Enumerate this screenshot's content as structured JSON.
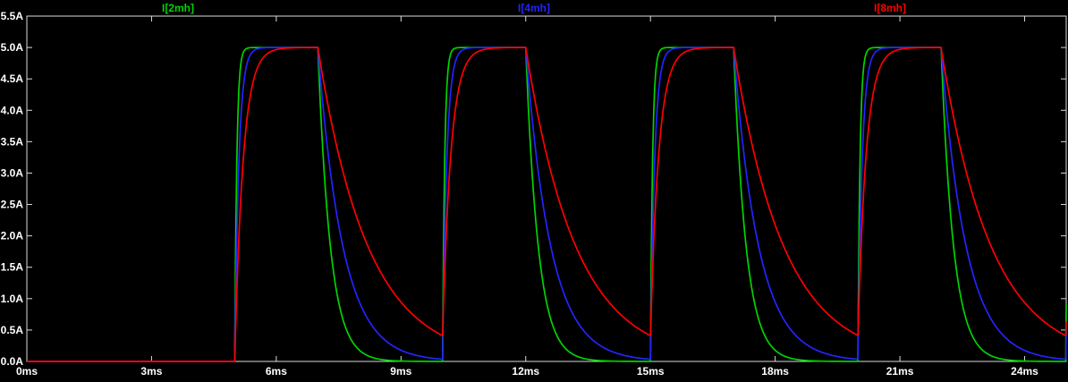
{
  "window": {
    "background": "#000000",
    "frame_color": "#dcdcdc",
    "text_color": "#ffffff"
  },
  "chart_data": {
    "type": "line",
    "title": "",
    "legend_position": "top",
    "grid": false,
    "xlim": [
      0,
      25
    ],
    "ylim": [
      0,
      5.5
    ],
    "x_unit": "ms",
    "y_unit": "A",
    "x_tick_labels": [
      "0ms",
      "3ms",
      "6ms",
      "9ms",
      "12ms",
      "15ms",
      "18ms",
      "21ms",
      "24ms"
    ],
    "x_tick_values": [
      0,
      3,
      6,
      9,
      12,
      15,
      18,
      21,
      24
    ],
    "y_tick_labels": [
      "0.0A",
      "0.5A",
      "1.0A",
      "1.5A",
      "2.0A",
      "2.5A",
      "3.0A",
      "3.5A",
      "4.0A",
      "4.5A",
      "5.0A",
      "5.5A"
    ],
    "y_tick_values": [
      0,
      0.5,
      1,
      1.5,
      2,
      2.5,
      3,
      3.5,
      4,
      4.5,
      5,
      5.5
    ],
    "series": [
      {
        "name": "I[2mh]",
        "color": "#00d400",
        "tau_rise_ms": 0.05,
        "tau_fall_ms": 0.3
      },
      {
        "name": "I[4mh]",
        "color": "#2424ff",
        "tau_rise_ms": 0.1,
        "tau_fall_ms": 0.6
      },
      {
        "name": "I[8mh]",
        "color": "#ff0000",
        "tau_rise_ms": 0.2,
        "tau_fall_ms": 1.2
      }
    ],
    "waveform_model": {
      "description": "Inductor current traces: 0A from 0ms to 5ms, then periodic pulses — exponential rise toward 5A during a 2ms on-time, exponential decay toward 0A during a 3ms off-time, 5ms period, 4 pulses visible (rises at 5, 10, 15, 20 ms; falls at 7, 12, 17, 22 ms). Larger inductance rises and decays more slowly; residual red current ~0.4A at each new rise.",
      "amplitude_A": 5.0,
      "first_rise_ms": 5.0,
      "on_ms": 2.0,
      "period_ms": 5.0,
      "pulses_visible": 4,
      "sample_step_ms": 0.01
    }
  }
}
